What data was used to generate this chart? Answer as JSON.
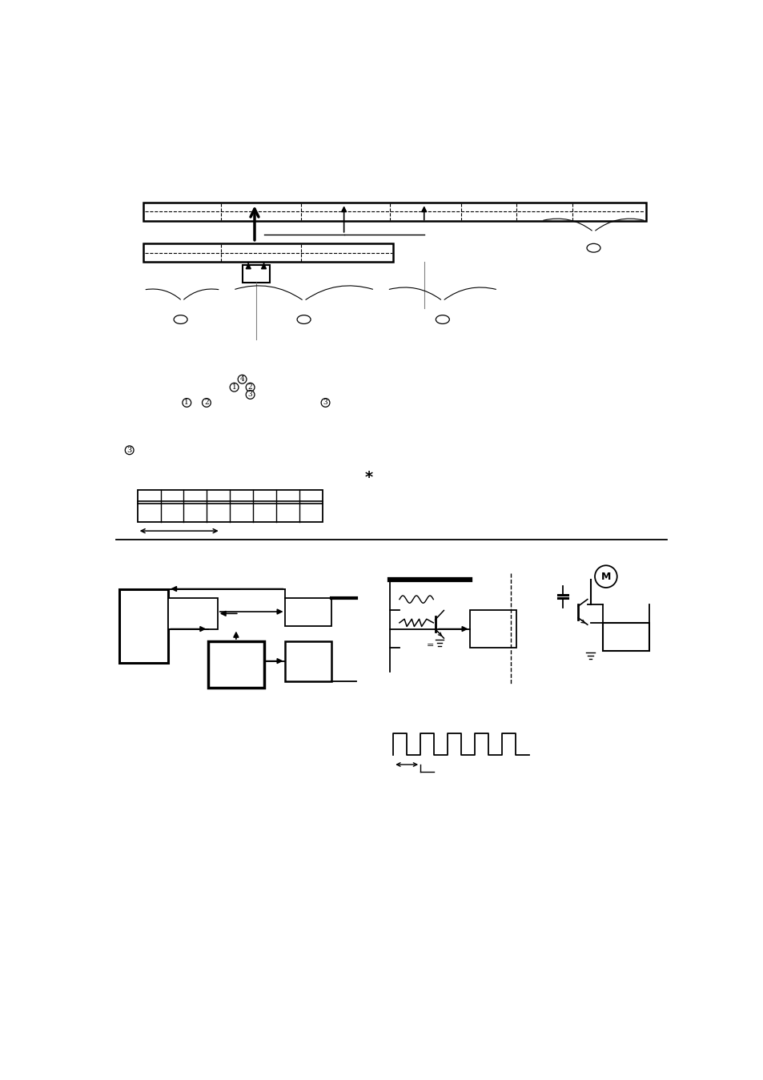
{
  "bg_color": "#ffffff",
  "line_color": "#000000",
  "fig_width": 9.54,
  "fig_height": 13.49,
  "dpi": 100
}
